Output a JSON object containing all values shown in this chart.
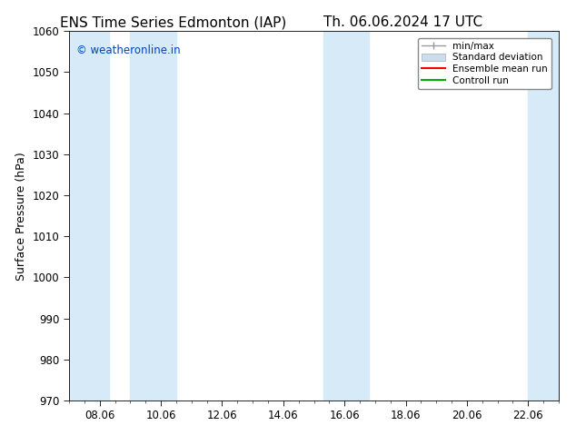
{
  "title_left": "ENS Time Series Edmonton (IAP)",
  "title_right": "Th. 06.06.2024 17 UTC",
  "ylabel": "Surface Pressure (hPa)",
  "ylim": [
    970,
    1060
  ],
  "yticks": [
    970,
    980,
    990,
    1000,
    1010,
    1020,
    1030,
    1040,
    1050,
    1060
  ],
  "xtick_positions": [
    8,
    10,
    12,
    14,
    16,
    18,
    20,
    22
  ],
  "xtick_labels": [
    "08.06",
    "10.06",
    "12.06",
    "14.06",
    "16.06",
    "18.06",
    "20.06",
    "22.06"
  ],
  "x_min": 7.0,
  "x_max": 23.0,
  "watermark": "© weatheronline.in",
  "watermark_color": "#0044bb",
  "bg_color": "#ffffff",
  "plot_bg_color": "#ffffff",
  "shaded_bands": [
    {
      "x_start": 7.0,
      "x_end": 8.3,
      "color": "#d6eaf8"
    },
    {
      "x_start": 9.0,
      "x_end": 10.5,
      "color": "#d6eaf8"
    },
    {
      "x_start": 15.3,
      "x_end": 16.8,
      "color": "#d6eaf8"
    },
    {
      "x_start": 22.0,
      "x_end": 23.0,
      "color": "#d6eaf8"
    }
  ],
  "legend_labels": [
    "min/max",
    "Standard deviation",
    "Ensemble mean run",
    "Controll run"
  ],
  "legend_colors_line": [
    "#999999",
    "#bbbbbb",
    "#ff0000",
    "#00aa00"
  ],
  "font_family": "DejaVu Sans",
  "title_fontsize": 11,
  "tick_fontsize": 8.5,
  "ylabel_fontsize": 9,
  "watermark_fontsize": 8.5
}
